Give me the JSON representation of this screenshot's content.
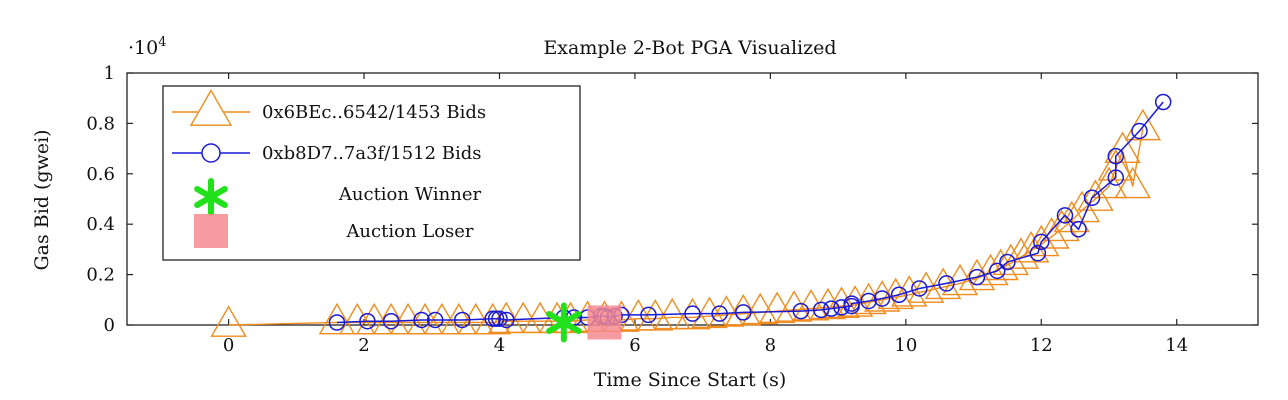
{
  "chart_data": {
    "type": "scatter",
    "title": "Example 2-Bot PGA Visualized",
    "xlabel": "Time Since Start (s)",
    "ylabel": "Gas Bid (gwei)",
    "y_multiplier_label": "·10",
    "y_multiplier_exp": "4",
    "xlim": [
      -1.5,
      15.2
    ],
    "ylim": [
      0,
      10000
    ],
    "xticks": [
      0,
      2,
      4,
      6,
      8,
      10,
      12,
      14
    ],
    "yticks": [
      0,
      2000,
      4000,
      6000,
      8000,
      10000
    ],
    "ytick_labels": [
      "0",
      "0.2",
      "0.4",
      "0.6",
      "0.8",
      "1"
    ],
    "grid": false,
    "legend_position": "top-left",
    "legend": [
      {
        "label": "0x6BEc..6542/1453 Bids",
        "marker": "triangle",
        "color": "#f08c1e"
      },
      {
        "label": "0xb8D7..7a3f/1512 Bids",
        "marker": "circle-line",
        "color": "#1a1ad6"
      },
      {
        "label": "Auction Winner",
        "marker": "star",
        "color": "#22e01a"
      },
      {
        "label": "Auction Loser",
        "marker": "square",
        "color": "#f58a8f"
      }
    ],
    "series": [
      {
        "name": "0x6BEc..6542/1453 Bids",
        "color": "#f08c1e",
        "marker": "triangle",
        "x": [
          0,
          1.6,
          1.9,
          2.15,
          2.4,
          2.65,
          2.9,
          3.15,
          3.4,
          3.65,
          3.9,
          4.1,
          4.35,
          4.6,
          4.85,
          5.05,
          5.3,
          5.55,
          5.8,
          6.05,
          6.3,
          6.55,
          6.85,
          7.1,
          7.35,
          7.6,
          7.85,
          8.1,
          8.35,
          8.6,
          8.85,
          9.05,
          9.25,
          9.45,
          9.65,
          9.85,
          10.05,
          10.3,
          10.55,
          10.8,
          11.05,
          11.25,
          11.4,
          11.55,
          11.7,
          11.85,
          12.0,
          12.15,
          12.3,
          12.45,
          12.6,
          12.8,
          13.0,
          13.1,
          13.2,
          13.35,
          13.5
        ],
        "y": [
          0,
          100,
          100,
          100,
          100,
          100,
          100,
          100,
          100,
          100,
          100,
          150,
          150,
          150,
          150,
          150,
          200,
          200,
          200,
          250,
          250,
          300,
          300,
          350,
          400,
          450,
          500,
          550,
          600,
          650,
          700,
          750,
          800,
          900,
          1000,
          1100,
          1200,
          1350,
          1500,
          1650,
          1850,
          2050,
          2250,
          2450,
          2700,
          2950,
          3200,
          3500,
          3800,
          4150,
          4550,
          5000,
          5500,
          6200,
          6900,
          5500,
          7800
        ]
      },
      {
        "name": "0xb8D7..7a3f/1512 Bids",
        "color": "#1a1ad6",
        "marker": "circle",
        "x": [
          1.6,
          2.05,
          2.4,
          2.85,
          3.05,
          3.45,
          3.9,
          3.95,
          4.0,
          4.1,
          4.95,
          5.1,
          5.3,
          5.5,
          5.55,
          5.6,
          5.7,
          5.8,
          6.2,
          6.85,
          7.25,
          7.6,
          8.45,
          8.75,
          8.9,
          9.05,
          9.2,
          9.2,
          9.45,
          9.65,
          9.9,
          10.2,
          10.6,
          11.05,
          11.35,
          11.5,
          11.95,
          12.0,
          12.35,
          12.55,
          12.75,
          13.1,
          13.1,
          13.45,
          13.8
        ],
        "y": [
          100,
          150,
          150,
          200,
          200,
          200,
          250,
          250,
          250,
          200,
          300,
          300,
          300,
          350,
          350,
          300,
          350,
          400,
          400,
          450,
          450,
          500,
          550,
          600,
          650,
          700,
          750,
          850,
          950,
          1050,
          1200,
          1450,
          1650,
          1900,
          2150,
          2500,
          2850,
          3300,
          4350,
          3800,
          5050,
          5850,
          6700,
          7700,
          8850
        ]
      }
    ],
    "annotations": [
      {
        "kind": "winner",
        "label": "Auction Winner",
        "x": 4.95,
        "y": 100,
        "color": "#22e01a"
      },
      {
        "kind": "loser",
        "label": "Auction Loser",
        "x": 5.55,
        "y": 100,
        "color": "#f58a8f"
      }
    ]
  }
}
